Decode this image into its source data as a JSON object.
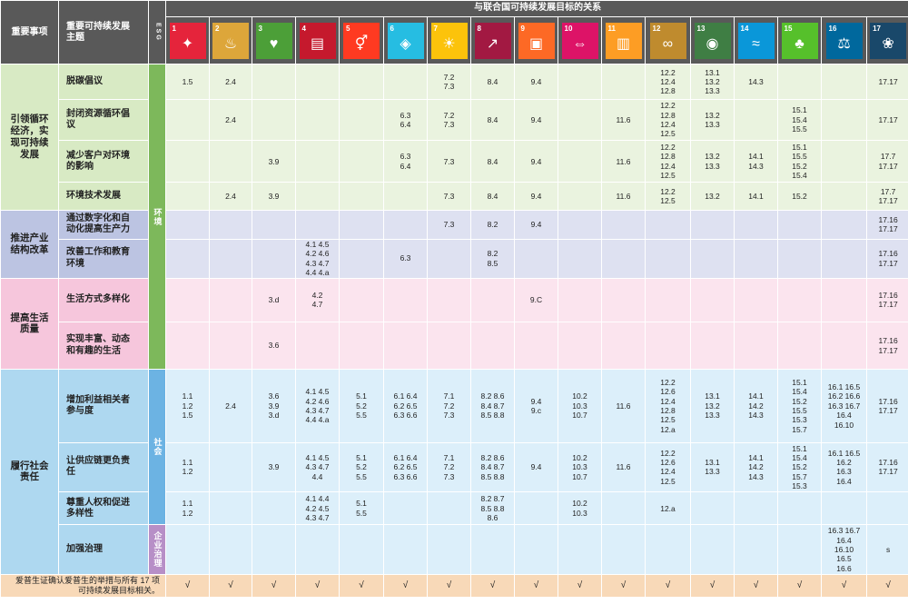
{
  "header": {
    "col_priority": "重要事项",
    "col_topic": "重要可持续发展\n主题",
    "col_esg": "ESG",
    "col_relation": "与联合国可持续发展目标的关系"
  },
  "sdg_icons": [
    {
      "num": "1",
      "color": "#E5243B",
      "glyph": "✦",
      "name": "no-poverty-icon"
    },
    {
      "num": "2",
      "color": "#DDA63A",
      "glyph": "♨",
      "name": "zero-hunger-icon"
    },
    {
      "num": "3",
      "color": "#4C9F38",
      "glyph": "♥",
      "name": "good-health-icon"
    },
    {
      "num": "4",
      "color": "#C5192D",
      "glyph": "▤",
      "name": "quality-education-icon"
    },
    {
      "num": "5",
      "color": "#FF3A21",
      "glyph": "⚥",
      "name": "gender-equality-icon"
    },
    {
      "num": "6",
      "color": "#26BDE2",
      "glyph": "◈",
      "name": "clean-water-icon"
    },
    {
      "num": "7",
      "color": "#FCC30B",
      "glyph": "☀",
      "name": "clean-energy-icon"
    },
    {
      "num": "8",
      "color": "#A21942",
      "glyph": "↗",
      "name": "decent-work-icon"
    },
    {
      "num": "9",
      "color": "#FD6925",
      "glyph": "▣",
      "name": "industry-innovation-icon"
    },
    {
      "num": "10",
      "color": "#DD1367",
      "glyph": "⇔",
      "name": "reduced-inequalities-icon"
    },
    {
      "num": "11",
      "color": "#FD9D24",
      "glyph": "▥",
      "name": "sustainable-cities-icon"
    },
    {
      "num": "12",
      "color": "#BF8B2E",
      "glyph": "∞",
      "name": "responsible-consumption-icon"
    },
    {
      "num": "13",
      "color": "#3F7E44",
      "glyph": "◉",
      "name": "climate-action-icon"
    },
    {
      "num": "14",
      "color": "#0A97D9",
      "glyph": "≈",
      "name": "life-below-water-icon"
    },
    {
      "num": "15",
      "color": "#56C02B",
      "glyph": "♣",
      "name": "life-on-land-icon"
    },
    {
      "num": "16",
      "color": "#00689D",
      "glyph": "⚖",
      "name": "peace-justice-icon"
    },
    {
      "num": "17",
      "color": "#19486A",
      "glyph": "❀",
      "name": "partnerships-icon"
    }
  ],
  "categories": [
    {
      "label": "引领循环\n经济，实\n现可持续\n发展",
      "color": "#D8EAC4"
    },
    {
      "label": "推进产业\n结构改革",
      "color": "#BCC4E2"
    },
    {
      "label": "提高生活\n质量",
      "color": "#F6C6DC"
    },
    {
      "label": "履行社会\n责任",
      "color": "#AED8F0"
    }
  ],
  "esg_groups": [
    {
      "label": "环境",
      "color": "#7DB85B"
    },
    {
      "label": "社会",
      "color": "#6CB3E3"
    },
    {
      "label": "企业治理",
      "color": "#B78FC7"
    }
  ],
  "rows": [
    {
      "topic": "脱碳倡议",
      "cells": [
        "1.5",
        "2.4",
        "",
        "",
        "",
        "",
        "7.2\n7.3",
        "8.4",
        "9.4",
        "",
        "",
        "12.2\n12.4\n12.8",
        "13.1\n13.2\n13.3",
        "14.3",
        "",
        "",
        "17.17"
      ]
    },
    {
      "topic": "封闭资源循环倡\n议",
      "cells": [
        "",
        "2.4",
        "",
        "",
        "",
        "6.3\n6.4",
        "7.2\n7.3",
        "8.4",
        "9.4",
        "",
        "11.6",
        "12.2\n12.8\n12.4\n12.5",
        "13.2\n13.3",
        "",
        "15.1\n15.4\n15.5",
        "",
        "17.17"
      ]
    },
    {
      "topic": "减少客户对环境\n的影响",
      "cells": [
        "",
        "",
        "3.9",
        "",
        "",
        "6.3\n6.4",
        "7.3",
        "8.4",
        "9.4",
        "",
        "11.6",
        "12.2\n12.8\n12.4\n12.5",
        "13.2\n13.3",
        "14.1\n14.3",
        "15.1\n15.5\n15.2\n15.4",
        "",
        "17.7\n17.17"
      ]
    },
    {
      "topic": "环境技术发展",
      "cells": [
        "",
        "2.4",
        "3.9",
        "",
        "",
        "",
        "7.3",
        "8.4",
        "9.4",
        "",
        "11.6",
        "12.2\n12.5",
        "13.2",
        "14.1",
        "15.2",
        "",
        "17.7\n17.17"
      ]
    },
    {
      "topic": "通过数字化和自\n动化提高生产力",
      "cells": [
        "",
        "",
        "",
        "",
        "",
        "",
        "7.3",
        "8.2",
        "9.4",
        "",
        "",
        "",
        "",
        "",
        "",
        "",
        "17.16\n17.17"
      ]
    },
    {
      "topic": "改善工作和教育\n环境",
      "cells": [
        "",
        "",
        "",
        "4.1 4.5\n4.2 4.6\n4.3 4.7\n4.4 4.a",
        "",
        "6.3",
        "",
        "8.2\n8.5",
        "",
        "",
        "",
        "",
        "",
        "",
        "",
        "",
        "17.16\n17.17"
      ]
    },
    {
      "topic": "生活方式多样化",
      "cells": [
        "",
        "",
        "3.d",
        "4.2\n4.7",
        "",
        "",
        "",
        "",
        "9.C",
        "",
        "",
        "",
        "",
        "",
        "",
        "",
        "17.16\n17.17"
      ]
    },
    {
      "topic": "实现丰富、动态\n和有趣的生活",
      "cells": [
        "",
        "",
        "3.6",
        "",
        "",
        "",
        "",
        "",
        "",
        "",
        "",
        "",
        "",
        "",
        "",
        "",
        "17.16\n17.17"
      ]
    },
    {
      "topic": "增加利益相关者\n参与度",
      "cells": [
        "1.1\n1.2\n1.5",
        "2.4",
        "3.6\n3.9\n3.d",
        "4.1 4.5\n4.2 4.6\n4.3 4.7\n4.4 4.a",
        "5.1\n5.2\n5.5",
        "6.1 6.4\n6.2 6.5\n6.3 6.6",
        "7.1\n7.2\n7.3",
        "8.2 8.6\n8.4 8.7\n8.5 8.8",
        "9.4\n9.c",
        "10.2\n10.3\n10.7",
        "11.6",
        "12.2\n12.6\n12.4\n12.8\n12.5\n12.a",
        "13.1\n13.2\n13.3",
        "14.1\n14.2\n14.3",
        "15.1\n15.4\n15.2\n15.5\n15.3\n15.7",
        "16.1 16.5\n16.2 16.6\n16.3 16.7\n16.4\n16.10",
        "17.16\n17.17"
      ]
    },
    {
      "topic": "让供应链更负责\n任",
      "cells": [
        "1.1\n1.2",
        "",
        "3.9",
        "4.1 4.5\n4.3 4.7\n4.4",
        "5.1\n5.2\n5.5",
        "6.1 6.4\n6.2 6.5\n6.3 6.6",
        "7.1\n7.2\n7.3",
        "8.2 8.6\n8.4 8.7\n8.5 8.8",
        "9.4",
        "10.2\n10.3\n10.7",
        "11.6",
        "12.2\n12.6\n12.4\n12.5",
        "13.1\n13.3",
        "14.1\n14.2\n14.3",
        "15.1\n15.4\n15.2\n15.7\n15.3",
        "16.1 16.5\n16.2\n16.3\n16.4",
        "17.16\n17.17"
      ]
    },
    {
      "topic": "尊重人权和促进\n多样性",
      "cells": [
        "1.1\n1.2",
        "",
        "",
        "4.1 4.4\n4.2 4.5\n4.3 4.7",
        "5.1\n5.5",
        "",
        "",
        "8.2 8.7\n8.5 8.8\n8.6",
        "",
        "10.2\n10.3",
        "",
        "12.a",
        "",
        "",
        "",
        "",
        ""
      ]
    },
    {
      "topic": "加强治理",
      "cells": [
        "",
        "",
        "",
        "",
        "",
        "",
        "",
        "",
        "",
        "",
        "",
        "",
        "",
        "",
        "",
        "16.3 16.7\n16.4\n16.10\n16.5\n16.6",
        "s"
      ]
    }
  ],
  "footer": {
    "text": "爱普生证确认爱普生的举措与所有 17 项\n可持续发展目标相关。",
    "checks": [
      "√",
      "√",
      "√",
      "√",
      "√",
      "√",
      "√",
      "√",
      "√",
      "√",
      "√",
      "√",
      "√",
      "√",
      "√",
      "√",
      "√"
    ]
  }
}
